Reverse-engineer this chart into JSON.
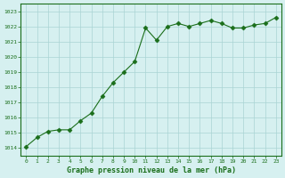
{
  "x": [
    0,
    1,
    2,
    3,
    4,
    5,
    6,
    7,
    8,
    9,
    10,
    11,
    12,
    13,
    14,
    15,
    16,
    17,
    18,
    19,
    20,
    21,
    22,
    23
  ],
  "y": [
    1014.1,
    1014.7,
    1015.1,
    1015.2,
    1015.2,
    1015.8,
    1016.3,
    1017.4,
    1018.3,
    1019.0,
    1019.7,
    1021.9,
    1021.1,
    1022.0,
    1022.2,
    1022.0,
    1022.2,
    1022.4,
    1022.2,
    1021.9,
    1021.9,
    1022.1,
    1022.2,
    1022.6
  ],
  "line_color": "#1a6e1a",
  "marker": "D",
  "marker_size": 2.5,
  "bg_color": "#d6f0f0",
  "grid_color": "#aad4d4",
  "xlabel": "Graphe pression niveau de la mer (hPa)",
  "xlabel_color": "#1a6e1a",
  "tick_color": "#1a6e1a",
  "ylim": [
    1013.5,
    1023.5
  ],
  "xlim": [
    -0.5,
    23.5
  ],
  "yticks": [
    1014,
    1015,
    1016,
    1017,
    1018,
    1019,
    1020,
    1021,
    1022,
    1023
  ],
  "xticks": [
    0,
    1,
    2,
    3,
    4,
    5,
    6,
    7,
    8,
    9,
    10,
    11,
    12,
    13,
    14,
    15,
    16,
    17,
    18,
    19,
    20,
    21,
    22,
    23
  ]
}
